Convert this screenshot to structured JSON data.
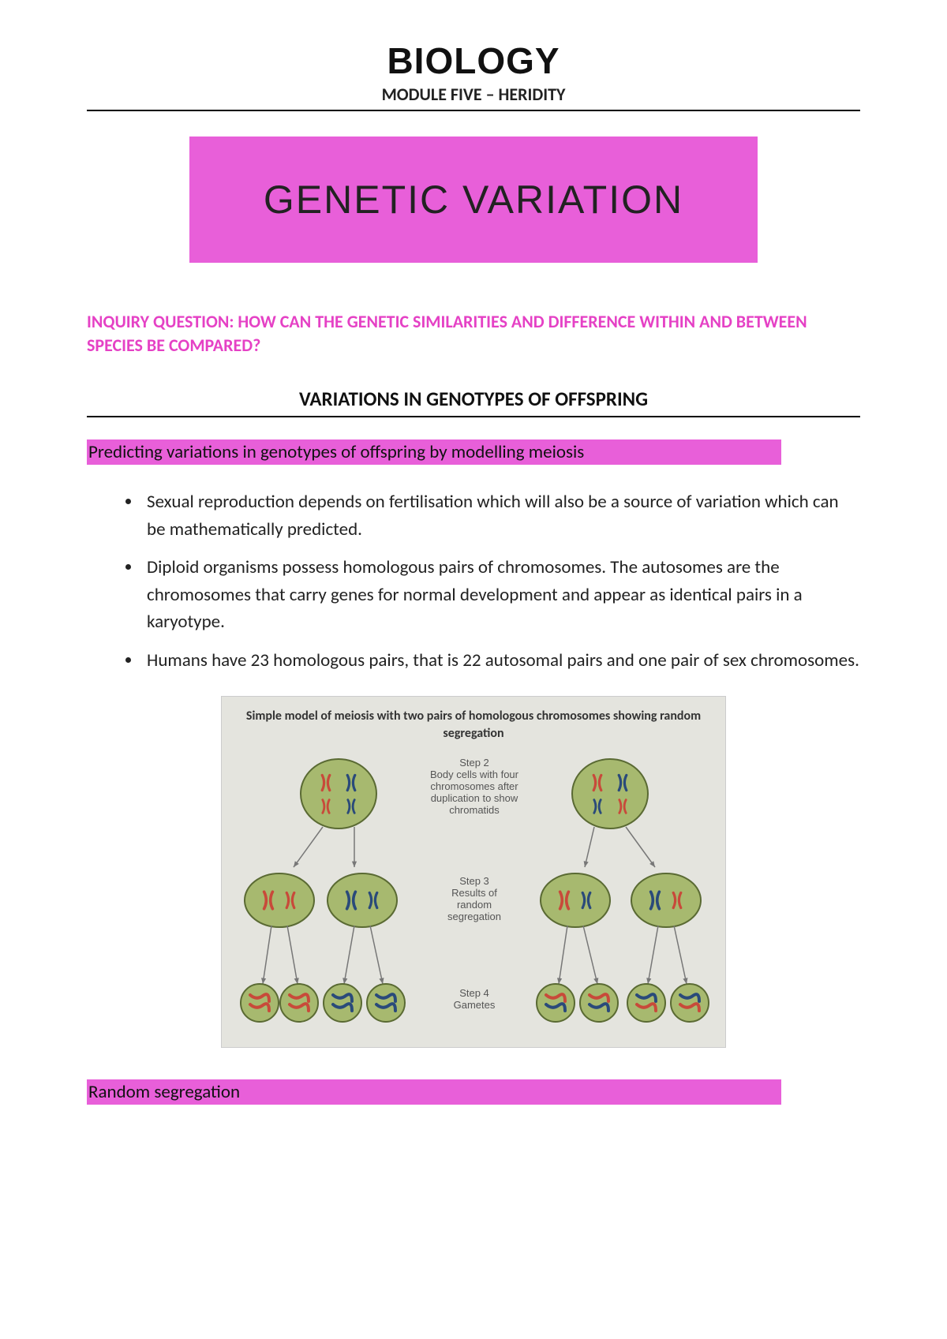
{
  "header": {
    "title": "BIOLOGY",
    "subtitle": "MODULE FIVE – HERIDITY"
  },
  "banner": {
    "text": "Genetic variation",
    "background_color": "#e85fd9"
  },
  "inquiry": {
    "text": "INQUIRY QUESTION: HOW CAN THE GENETIC SIMILARITIES AND DIFFERENCE WITHIN AND BETWEEN SPECIES BE COMPARED?",
    "color": "#e541c5"
  },
  "section": {
    "title": "VARIATIONS IN GENOTYPES OF OFFSPRING"
  },
  "highlight1": {
    "text": "Predicting variations in genotypes of offspring by modelling meiosis",
    "background_color": "#e85fd9"
  },
  "bullets": [
    "Sexual reproduction depends on fertilisation which will also be a source of variation which can be mathematically predicted.",
    "Diploid organisms possess homologous pairs of chromosomes. The autosomes are the chromosomes that carry genes for normal development and appear as identical pairs in a karyotype.",
    "Humans have 23 homologous pairs, that is 22 autosomal pairs and one pair of sex chromosomes."
  ],
  "diagram": {
    "title": "Simple model of meiosis with two pairs of homologous chromosomes showing random segregation",
    "background_color": "#e4e4de",
    "cell_fill": "#a7b96f",
    "cell_stroke": "#5a6a33",
    "chrom_red": "#c84a3a",
    "chrom_blue": "#2a4a7a",
    "arrow_color": "#777",
    "step2_label": "Step 2",
    "step2_text": "Body cells with four chromosomes after duplication to show chromatids",
    "step3_label": "Step 3",
    "step3_text": "Results of random segregation",
    "step4_label": "Step 4",
    "step4_text": "Gametes"
  },
  "highlight2": {
    "text": "Random segregation",
    "background_color": "#e85fd9"
  }
}
